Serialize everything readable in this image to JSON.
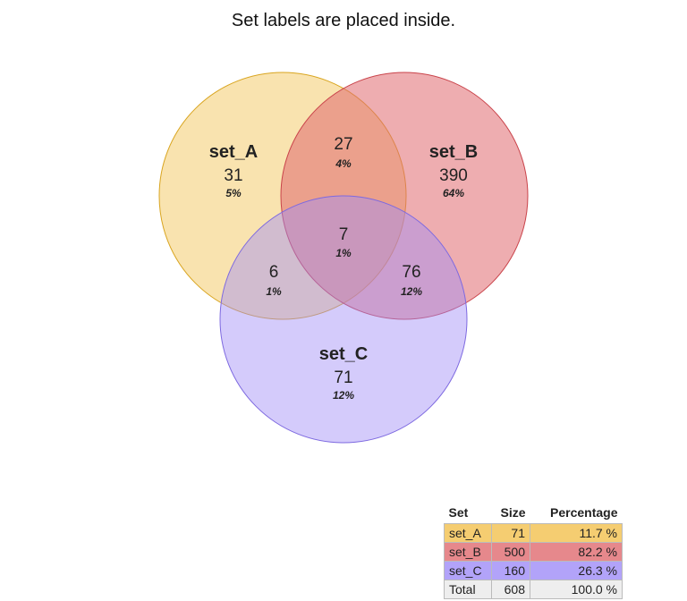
{
  "title": "Set labels are placed inside.",
  "colors": {
    "set_A": "#f2c14e",
    "set_B": "#e06a6f",
    "set_C": "#9f8cf7",
    "total": "#eeeeee"
  },
  "sets": [
    {
      "key": "A",
      "label": "set_A",
      "count": "31",
      "pct": "5%"
    },
    {
      "key": "B",
      "label": "set_B",
      "count": "390",
      "pct": "64%"
    },
    {
      "key": "C",
      "label": "set_C",
      "count": "71",
      "pct": "12%"
    }
  ],
  "regions": {
    "AB": {
      "count": "27",
      "pct": "4%"
    },
    "AC": {
      "count": "6",
      "pct": "1%"
    },
    "BC": {
      "count": "76",
      "pct": "12%"
    },
    "ABC": {
      "count": "7",
      "pct": "1%"
    }
  },
  "legend": {
    "headers": [
      "Set",
      "Size",
      "Percentage"
    ],
    "rows": [
      {
        "set": "set_A",
        "size": "71",
        "pct": "11.7 %"
      },
      {
        "set": "set_B",
        "size": "500",
        "pct": "82.2 %"
      },
      {
        "set": "set_C",
        "size": "160",
        "pct": "26.3 %"
      },
      {
        "set": "Total",
        "size": "608",
        "pct": "100.0 %"
      }
    ]
  }
}
